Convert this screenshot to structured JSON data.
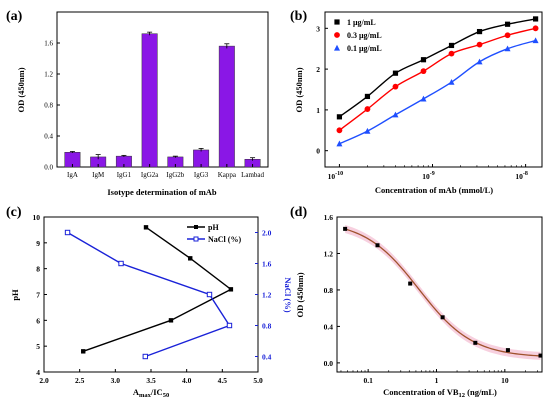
{
  "chart_data": [
    {
      "panel": "(a)",
      "type": "bar",
      "xlabel": "Isotype determination of mAb",
      "ylabel": "OD (450nm)",
      "ylim": [
        0,
        2.0
      ],
      "yticks": [
        "0.0",
        "0.4",
        "0.8",
        "1.2",
        "1.6"
      ],
      "categories": [
        "IgA",
        "IgM",
        "IgG1",
        "IgG2a",
        "IgG2b",
        "IgG3",
        "Kappa",
        "Lambad"
      ],
      "values": [
        0.19,
        0.13,
        0.14,
        1.72,
        0.13,
        0.22,
        1.56,
        0.1
      ],
      "errors": [
        0.01,
        0.03,
        0.01,
        0.02,
        0.01,
        0.02,
        0.03,
        0.02
      ],
      "color": "#8a17e6"
    },
    {
      "panel": "(b)",
      "type": "scatter",
      "xlabel": "Concentration of mAb (mmol/L)",
      "ylabel": "OD (450nm)",
      "xscale": "log",
      "xlim": [
        7e-11,
        1.5e-08
      ],
      "ylim": [
        -0.4,
        3.4
      ],
      "yticks": [
        "0",
        "1",
        "2",
        "3"
      ],
      "xticks": [
        1e-10,
        1e-09,
        1e-08
      ],
      "legend_position": "top-left",
      "series": [
        {
          "name": "1 μg/mL",
          "color": "#000000",
          "marker": "square",
          "x": [
            1e-10,
            2e-10,
            4e-10,
            8e-10,
            1.6e-09,
            3.2e-09,
            6.4e-09,
            1.28e-08
          ],
          "y": [
            0.83,
            1.33,
            1.9,
            2.23,
            2.58,
            2.92,
            3.1,
            3.23
          ]
        },
        {
          "name": "0.3 μg/mL",
          "color": "#ff0000",
          "marker": "circle",
          "x": [
            1e-10,
            2e-10,
            4e-10,
            8e-10,
            1.6e-09,
            3.2e-09,
            6.4e-09,
            1.28e-08
          ],
          "y": [
            0.5,
            1.02,
            1.57,
            1.95,
            2.38,
            2.6,
            2.83,
            3.0
          ]
        },
        {
          "name": "0.1 μg/mL",
          "color": "#1f4fff",
          "marker": "triangle",
          "x": [
            1e-10,
            2e-10,
            4e-10,
            8e-10,
            1.6e-09,
            3.2e-09,
            6.4e-09,
            1.28e-08
          ],
          "y": [
            0.17,
            0.48,
            0.88,
            1.27,
            1.68,
            2.18,
            2.5,
            2.7
          ]
        }
      ]
    },
    {
      "panel": "(c)",
      "type": "line",
      "xlabel": "A",
      "xlabel_sub1": "max",
      "xlabel_mid": "/IC",
      "xlabel_sub2": "50",
      "ylabel": "pH",
      "y2label": "NaCl (%)",
      "xlim": [
        2.0,
        5.0
      ],
      "ylim": [
        4.0,
        10.0
      ],
      "y2lim": [
        0.2,
        2.2
      ],
      "xticks": [
        "2.0",
        "2.5",
        "3.0",
        "3.5",
        "4.0",
        "4.5",
        "5.0"
      ],
      "yticks": [
        "4",
        "5",
        "6",
        "7",
        "8",
        "9",
        "10"
      ],
      "y2ticks": [
        "0.4",
        "0.8",
        "1.2",
        "1.6",
        "2.0"
      ],
      "legend_position": "top-right",
      "series": [
        {
          "name": "pH",
          "color": "#000000",
          "axis": "left",
          "x": [
            2.55,
            3.78,
            4.62,
            4.05,
            3.43
          ],
          "y": [
            4.8,
            6.0,
            7.2,
            8.4,
            9.6
          ]
        },
        {
          "name": "NaCl (%)",
          "color": "#1a22d8",
          "axis": "right",
          "x": [
            3.42,
            4.6,
            4.32,
            3.08,
            2.33
          ],
          "y": [
            0.4,
            0.8,
            1.2,
            1.6,
            2.0
          ]
        }
      ]
    },
    {
      "panel": "(d)",
      "type": "scatter",
      "xlabel": "Concentration of VB",
      "xlabel_sub": "12",
      "xlabel_unit": " (ng/mL)",
      "ylabel": "OD (450nm)",
      "xscale": "log",
      "xlim": [
        0.035,
        35
      ],
      "ylim": [
        -0.1,
        1.6
      ],
      "xticks": [
        "0.1",
        "1",
        "10"
      ],
      "yticks": [
        "0.0",
        "0.4",
        "0.8",
        "1.2",
        "1.6"
      ],
      "fit_color": "#a0522d",
      "band_color": "#f4c0d4",
      "series": [
        {
          "color": "#000000",
          "x": [
            0.046,
            0.137,
            0.412,
            1.23,
            3.7,
            11.1,
            33.3
          ],
          "y": [
            1.47,
            1.29,
            0.87,
            0.5,
            0.22,
            0.14,
            0.08
          ]
        }
      ]
    }
  ]
}
